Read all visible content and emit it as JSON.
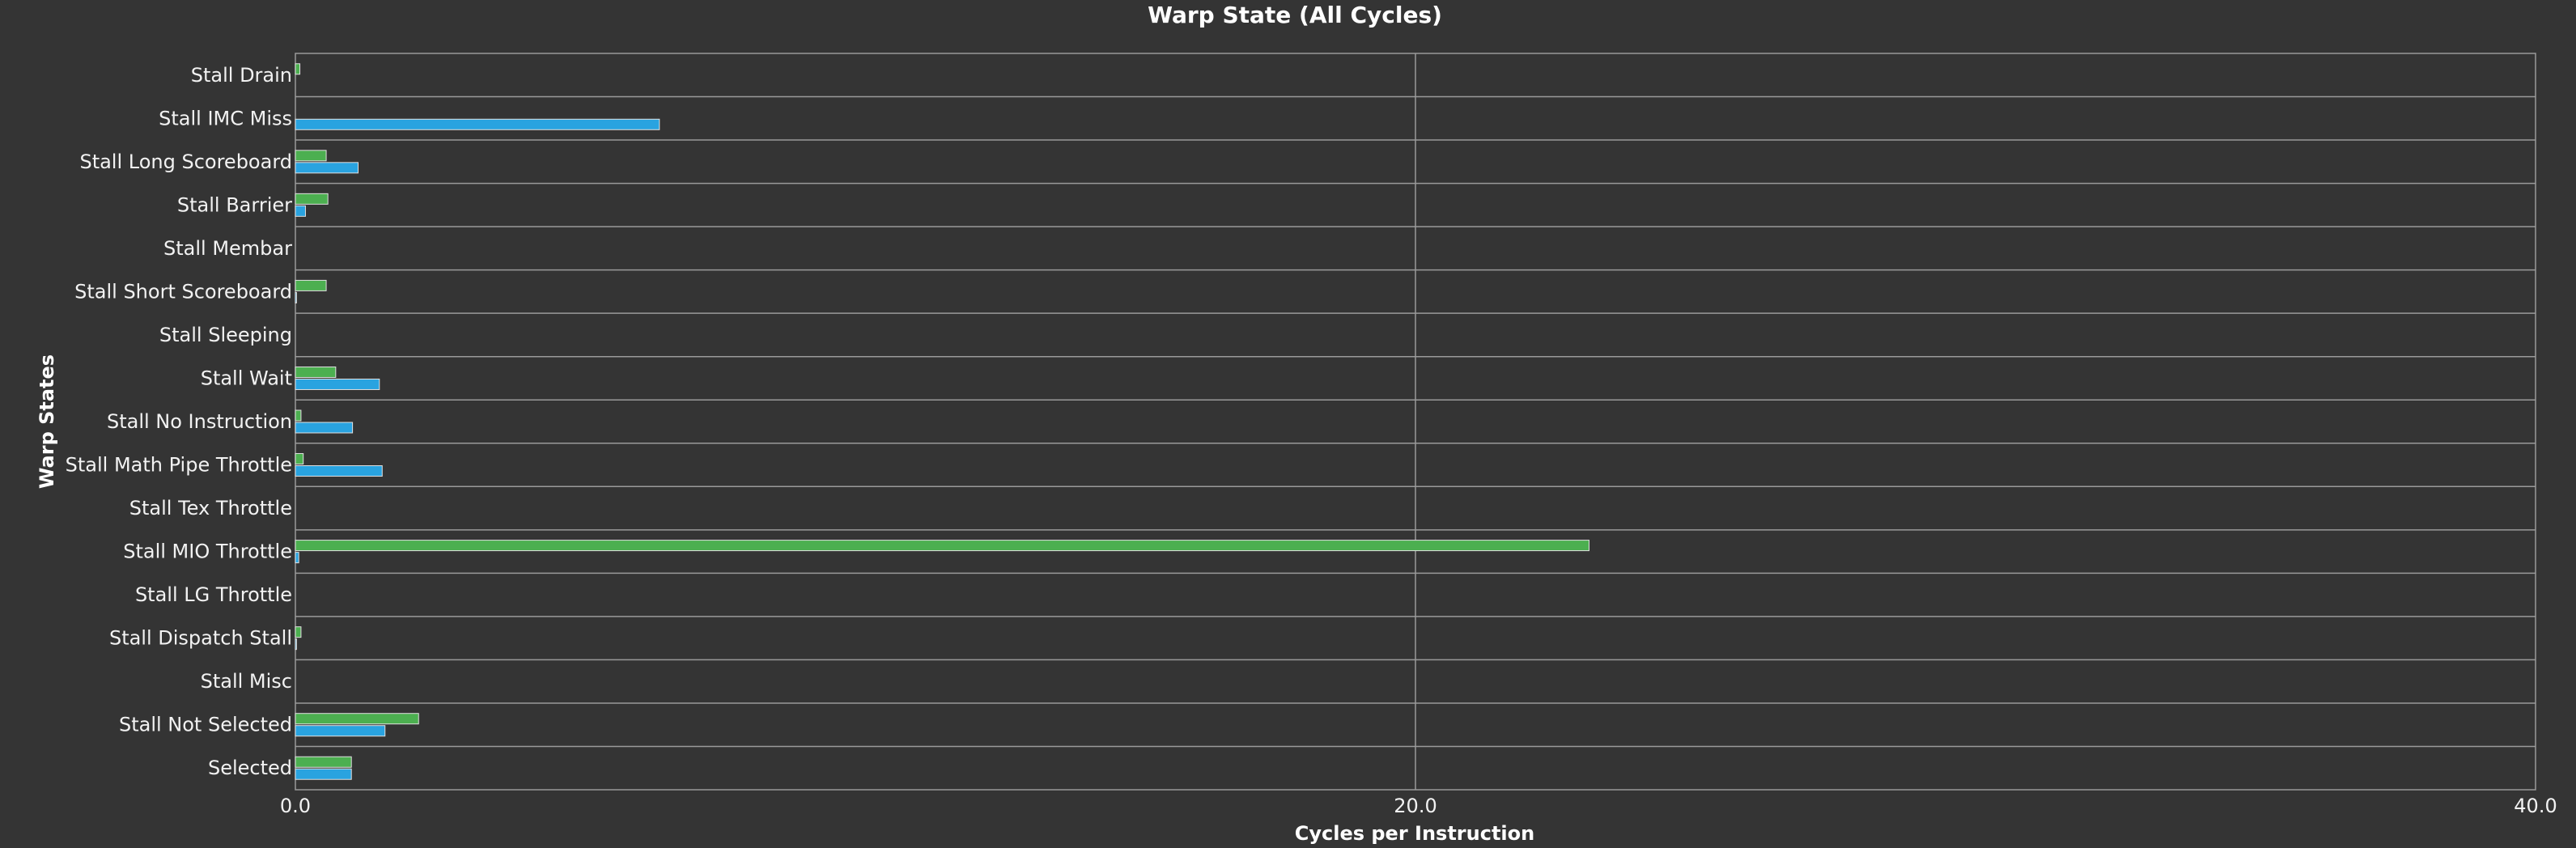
{
  "chart_data": {
    "type": "bar",
    "orientation": "horizontal",
    "title": "Warp State (All Cycles)",
    "xlabel": "Cycles per Instruction",
    "ylabel": "Warp States",
    "xlim": [
      0,
      40
    ],
    "x_ticks": [
      "0.0",
      "20.0",
      "40.0"
    ],
    "grid": true,
    "categories": [
      "Stall Drain",
      "Stall IMC Miss",
      "Stall Long Scoreboard",
      "Stall Barrier",
      "Stall Membar",
      "Stall Short Scoreboard",
      "Stall Sleeping",
      "Stall Wait",
      "Stall No Instruction",
      "Stall Math Pipe Throttle",
      "Stall Tex Throttle",
      "Stall MIO Throttle",
      "Stall LG Throttle",
      "Stall Dispatch Stall",
      "Stall Misc",
      "Stall Not Selected",
      "Selected"
    ],
    "series": [
      {
        "color": "#4caf50",
        "values": [
          0.08,
          0.0,
          0.55,
          0.58,
          0.0,
          0.55,
          0.0,
          0.72,
          0.1,
          0.14,
          0.0,
          23.1,
          0.0,
          0.1,
          0.0,
          2.2,
          1.0
        ]
      },
      {
        "color": "#29a3e0",
        "values": [
          0.0,
          6.5,
          1.12,
          0.18,
          0.0,
          0.02,
          0.0,
          1.5,
          1.02,
          1.55,
          0.0,
          0.06,
          0.0,
          0.02,
          0.0,
          1.6,
          1.0
        ]
      }
    ],
    "colors": {
      "background": "#343434",
      "grid": "#9a9a9a",
      "bar_outline": "#e0e0e0"
    }
  }
}
